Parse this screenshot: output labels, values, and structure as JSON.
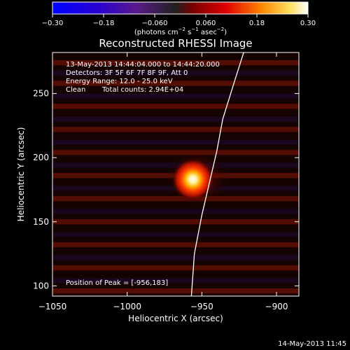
{
  "chart_data": {
    "type": "heatmap",
    "title": "Reconstructed RHESSI Image",
    "xlabel": "Heliocentric X (arcsec)",
    "ylabel": "Heliocentric Y (arcsec)",
    "xlim": [
      -1050,
      -885
    ],
    "ylim": [
      92,
      282
    ],
    "x_ticks": [
      "−1050",
      "−1000",
      "−950",
      "−900"
    ],
    "x_tick_values": [
      -1050,
      -1000,
      -950,
      -900
    ],
    "y_ticks": [
      "100",
      "150",
      "200",
      "250"
    ],
    "y_tick_values": [
      100,
      150,
      200,
      250
    ],
    "colorbar": {
      "range": [
        -0.3,
        0.3
      ],
      "ticks": [
        "−0.30",
        "−0.18",
        "−0.060",
        "0.060",
        "0.18",
        "0.30"
      ],
      "tick_values": [
        -0.3,
        -0.18,
        -0.06,
        0.06,
        0.18,
        0.3
      ],
      "unit_main": "(photons cm",
      "unit_exp1": "−2",
      "unit_mid": " s",
      "unit_exp2": "−1",
      "unit_mid2": " asec",
      "unit_exp3": "−2",
      "unit_end": ")"
    },
    "peak": {
      "x": -956,
      "y": 183
    },
    "limb_curve": [
      [
        -957,
        92
      ],
      [
        -955,
        125
      ],
      [
        -950,
        155
      ],
      [
        -945,
        180
      ],
      [
        -940,
        205
      ],
      [
        -936,
        230
      ],
      [
        -928,
        260
      ],
      [
        -922,
        282
      ]
    ],
    "stripes_y": [
      274,
      266,
      258,
      248,
      240,
      230,
      222,
      212,
      204,
      194,
      186,
      176,
      168,
      158,
      150,
      140,
      132,
      122,
      114,
      104,
      96
    ],
    "annotations": {
      "time_range": "13-May-2013 14:44:04.000 to 14:44:20.000",
      "detectors": "Detectors: 3F 5F 6F 7F 8F 9F, Att 0",
      "energy": "Energy Range: 12.0 - 25.0 keV",
      "clean": "Clean",
      "counts": "Total counts: 2.94E+04",
      "peak_label": "Position of Peak = [-956,183]"
    }
  },
  "footer": {
    "timestamp": "14-May-2013 11:45"
  }
}
